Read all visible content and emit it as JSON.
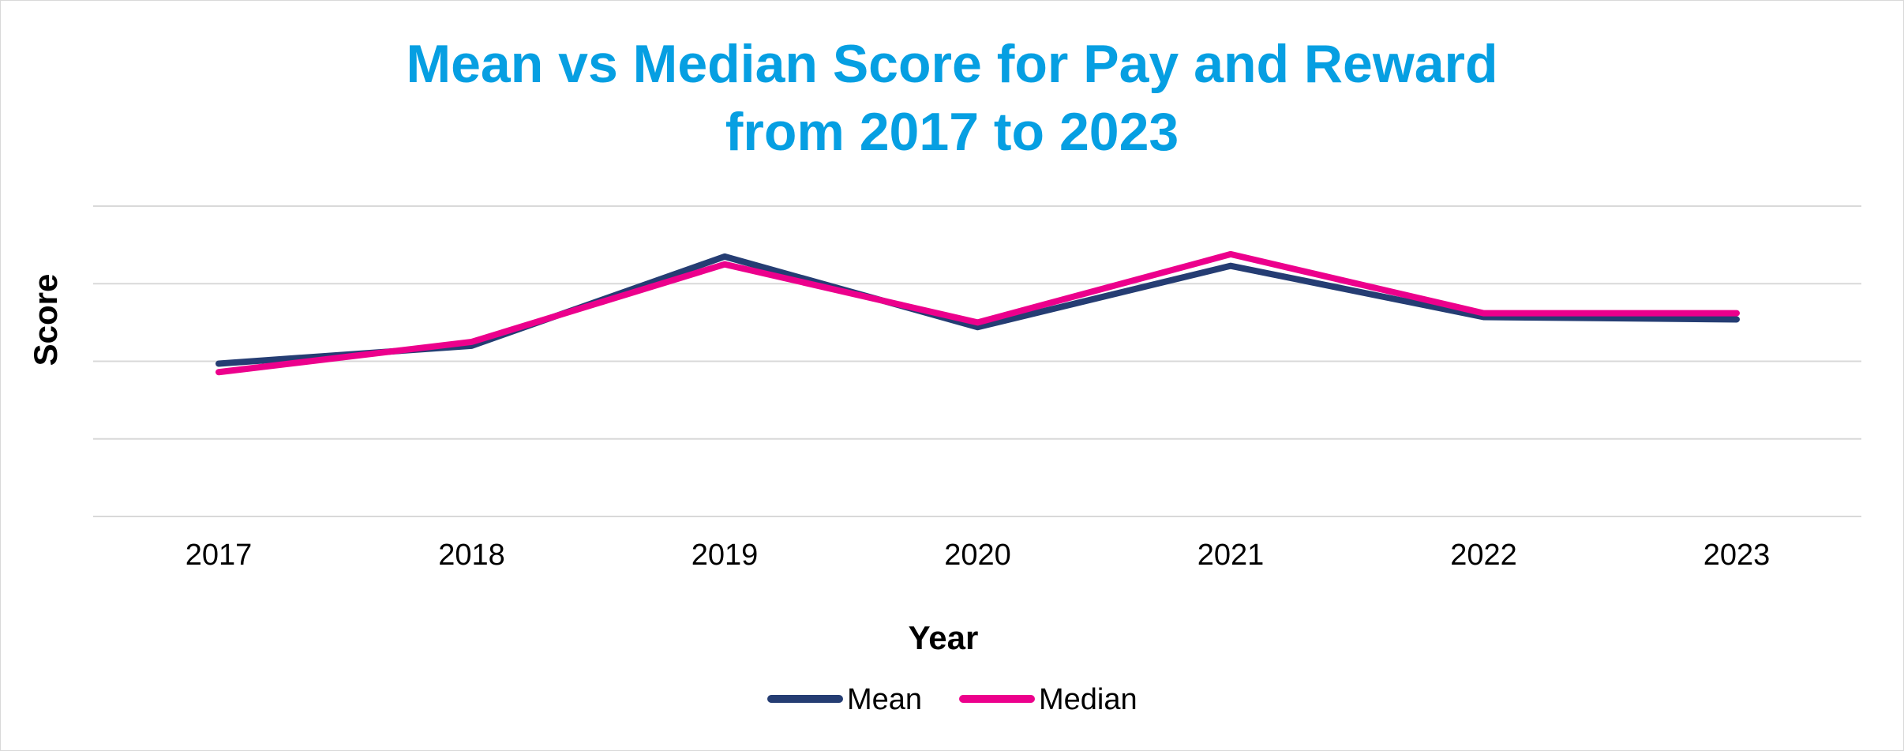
{
  "chart_data": {
    "type": "line",
    "title_lines": [
      "Mean vs Median Score for Pay and Reward",
      "from 2017 to 2023"
    ],
    "xlabel": "Year",
    "ylabel": "Score",
    "categories": [
      "2017",
      "2018",
      "2019",
      "2020",
      "2021",
      "2022",
      "2023"
    ],
    "ylim": [
      0,
      4
    ],
    "grid": true,
    "legend_position": "bottom",
    "series": [
      {
        "name": "Mean",
        "color": "#253d73",
        "values": [
          1.97,
          2.2,
          3.35,
          2.44,
          3.23,
          2.57,
          2.54
        ]
      },
      {
        "name": "Median",
        "color": "#ec008c",
        "values": [
          1.86,
          2.25,
          3.25,
          2.5,
          3.38,
          2.62,
          2.62
        ]
      }
    ]
  }
}
